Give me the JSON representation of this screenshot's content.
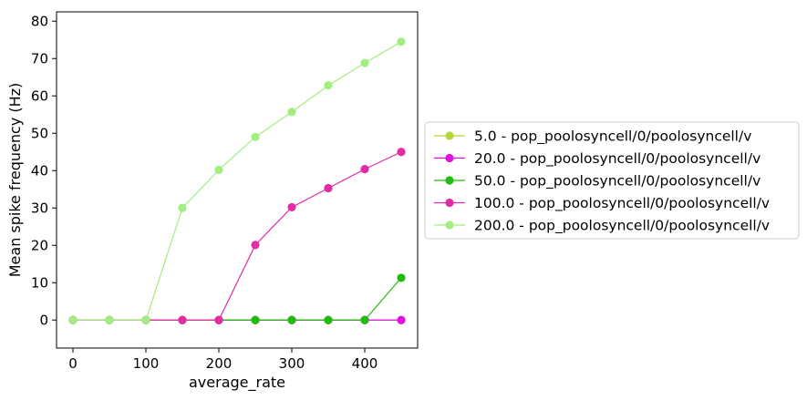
{
  "chart_data": {
    "type": "line",
    "xlabel": "average_rate",
    "ylabel": "Mean spike frequency (Hz)",
    "xlim": [
      -22.5,
      472.5
    ],
    "ylim": [
      -7.5,
      82.5
    ],
    "xticks": [
      0,
      100,
      200,
      300,
      400
    ],
    "yticks": [
      0,
      10,
      20,
      30,
      40,
      50,
      60,
      70,
      80
    ],
    "legend_placement": "right-outside",
    "x": [
      0,
      50,
      100,
      150,
      200,
      250,
      300,
      350,
      400,
      450
    ],
    "series": [
      {
        "name": "5.0 - pop_poolosyncell/0/poolosyncell/v",
        "color": "#b5d93b",
        "values": [
          0,
          0,
          0,
          0,
          0,
          0,
          0,
          0,
          0,
          0
        ]
      },
      {
        "name": "20.0 - pop_poolosyncell/0/poolosyncell/v",
        "color": "#e012e0",
        "values": [
          0,
          0,
          0,
          0,
          0,
          0,
          0,
          0,
          0,
          0
        ]
      },
      {
        "name": "50.0 - pop_poolosyncell/0/poolosyncell/v",
        "color": "#22bb11",
        "values": [
          0,
          0,
          0,
          0,
          0,
          0,
          0,
          0,
          0,
          11.3
        ]
      },
      {
        "name": "100.0 - pop_poolosyncell/0/poolosyncell/v",
        "color": "#e22ba6",
        "values": [
          0,
          0,
          0,
          0,
          0,
          20.1,
          30.2,
          35.3,
          40.4,
          45.0
        ]
      },
      {
        "name": "200.0 - pop_poolosyncell/0/poolosyncell/v",
        "color": "#a3ee80",
        "values": [
          0,
          0,
          0,
          30.0,
          40.2,
          49.0,
          55.7,
          62.8,
          68.8,
          74.5
        ]
      }
    ]
  }
}
